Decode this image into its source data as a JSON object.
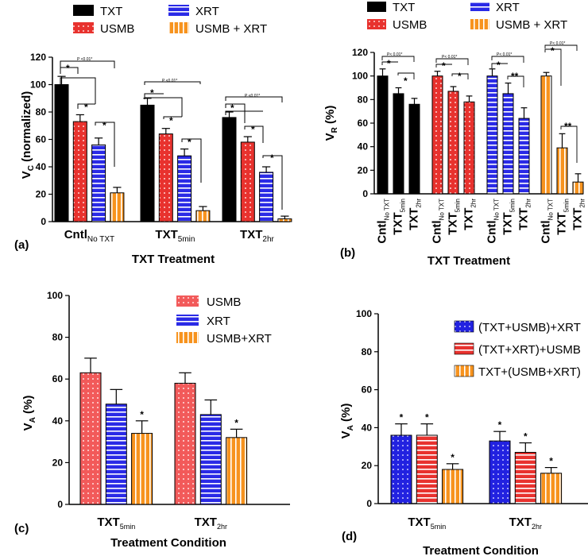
{
  "chart_data": [
    {
      "id": "a",
      "type": "bar",
      "panel_label": "(a)",
      "ylabel": "VC (normalized)",
      "ylabel_main": "V",
      "ylabel_sub": "C",
      "ylabel_rest": " (normalized)",
      "xlabel": "TXT Treatment",
      "ylim": [
        0,
        120
      ],
      "yticks": [
        "0",
        "20",
        "40",
        "60",
        "80",
        "100",
        "120"
      ],
      "categories": [
        {
          "main": "Cntl",
          "sub": "No TXT"
        },
        {
          "main": "TXT",
          "sub": "5min"
        },
        {
          "main": "TXT",
          "sub": "2hr"
        }
      ],
      "series": [
        {
          "name": "TXT",
          "values": [
            100,
            85,
            76
          ],
          "errors": [
            6,
            5,
            4
          ]
        },
        {
          "name": "USMB",
          "values": [
            73,
            64,
            58
          ],
          "errors": [
            5,
            4,
            4
          ]
        },
        {
          "name": "XRT",
          "values": [
            56,
            48,
            36
          ],
          "errors": [
            5,
            5,
            4
          ]
        },
        {
          "name": "USMB + XRT",
          "values": [
            21,
            8,
            2
          ],
          "errors": [
            4,
            3,
            2
          ]
        }
      ],
      "annotations": {
        "star": "*",
        "p_label": "P <0.01*"
      }
    },
    {
      "id": "b",
      "type": "bar",
      "panel_label": "(b)",
      "ylabel": "VR (%)",
      "ylabel_main": "V",
      "ylabel_sub": "R",
      "ylabel_rest": " (%)",
      "xlabel": "TXT Treatment",
      "ylim": [
        0,
        120
      ],
      "yticks": [
        "0",
        "20",
        "40",
        "60",
        "80",
        "100",
        "120"
      ],
      "categories": [
        {
          "main": "Cntl",
          "sub": "No TXT"
        },
        {
          "main": "TXT",
          "sub": "5min"
        },
        {
          "main": "TXT",
          "sub": "2hr"
        }
      ],
      "series": [
        {
          "name": "TXT",
          "values": [
            100,
            85,
            76
          ],
          "errors": [
            6,
            5,
            5
          ]
        },
        {
          "name": "USMB",
          "values": [
            100,
            87,
            78
          ],
          "errors": [
            4,
            4,
            5
          ]
        },
        {
          "name": "XRT",
          "values": [
            100,
            85,
            64
          ],
          "errors": [
            6,
            9,
            9
          ]
        },
        {
          "name": "USMB + XRT",
          "values": [
            100,
            39,
            10
          ],
          "errors": [
            3,
            12,
            7
          ]
        }
      ],
      "annotations": {
        "star": "*",
        "double_star": "**",
        "p_label": "P< 0.01*"
      }
    },
    {
      "id": "c",
      "type": "bar",
      "panel_label": "(c)",
      "ylabel": "VA (%)",
      "ylabel_main": "V",
      "ylabel_sub": "A",
      "ylabel_rest": " (%)",
      "xlabel": "Treatment Condition",
      "ylim": [
        0,
        100
      ],
      "yticks": [
        "0",
        "20",
        "40",
        "60",
        "80",
        "100"
      ],
      "categories": [
        {
          "main": "TXT",
          "sub": "5min"
        },
        {
          "main": "TXT",
          "sub": "2hr"
        }
      ],
      "series": [
        {
          "name": "USMB",
          "values": [
            63,
            58
          ],
          "errors": [
            7,
            5
          ]
        },
        {
          "name": "XRT",
          "values": [
            48,
            43
          ],
          "errors": [
            7,
            7
          ]
        },
        {
          "name": "USMB+XRT",
          "values": [
            34,
            32
          ],
          "errors": [
            6,
            4
          ]
        }
      ],
      "annotations": {
        "star": "*"
      }
    },
    {
      "id": "d",
      "type": "bar",
      "panel_label": "(d)",
      "ylabel": "VA (%)",
      "ylabel_main": "V",
      "ylabel_sub": "A",
      "ylabel_rest": " (%)",
      "xlabel": "Treatment Condition",
      "ylim": [
        0,
        100
      ],
      "yticks": [
        "0",
        "20",
        "40",
        "60",
        "80",
        "100"
      ],
      "categories": [
        {
          "main": "TXT",
          "sub": "5min"
        },
        {
          "main": "TXT",
          "sub": "2hr"
        }
      ],
      "series": [
        {
          "name": "(TXT+USMB)+XRT",
          "values": [
            36,
            33
          ],
          "errors": [
            6,
            5
          ]
        },
        {
          "name": "(TXT+XRT)+USMB",
          "values": [
            36,
            27
          ],
          "errors": [
            6,
            5
          ]
        },
        {
          "name": "TXT+(USMB+XRT)",
          "values": [
            18,
            16
          ],
          "errors": [
            3,
            3
          ]
        }
      ],
      "annotations": {
        "star": "*"
      }
    }
  ],
  "styles": {
    "black": "#000000",
    "red": "#e8322e",
    "blue": "#2222e0",
    "orange": "#f7931e",
    "pink": "#f25a5a"
  }
}
